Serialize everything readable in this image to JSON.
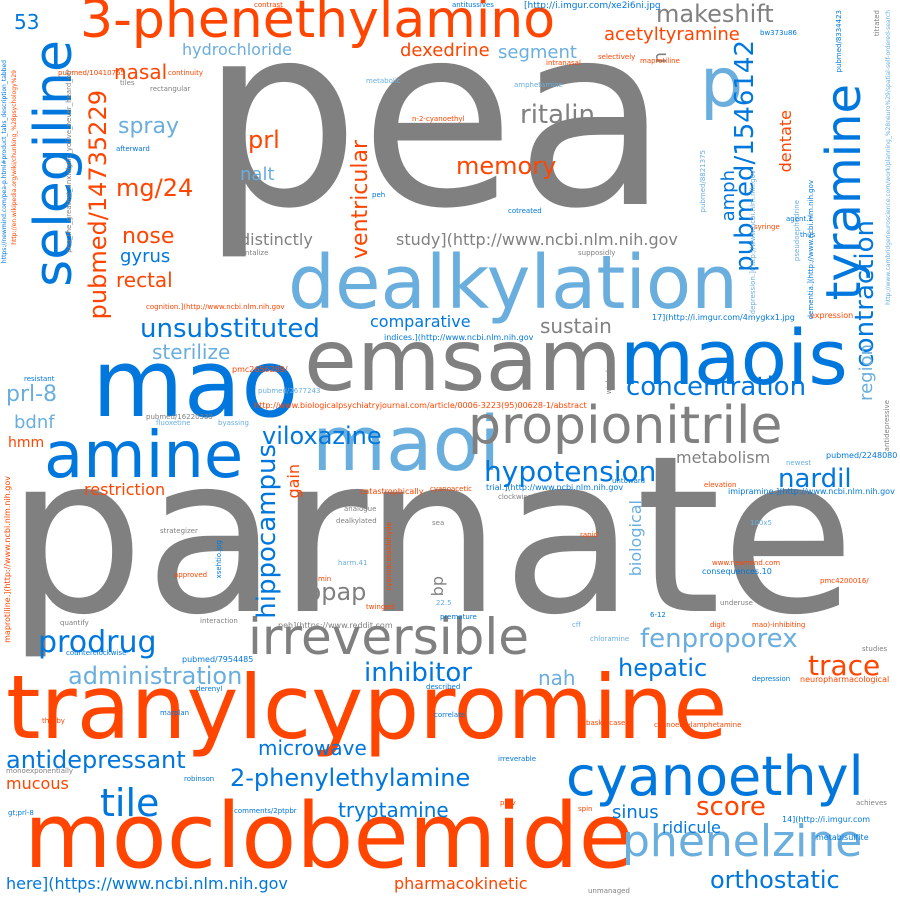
{
  "colors": {
    "gray": "#808080",
    "orange": "#ff4500",
    "blue": "#0077dd",
    "light_blue": "#6aaede"
  },
  "words": {
    "w01": "pea",
    "w02": "parnate",
    "w03": "tranylcypromine",
    "w04": "moclobemide",
    "w05": "emsam",
    "w06": "dealkylation",
    "w07": "maois",
    "w08": "mao",
    "w09": "maoi",
    "w10": "amine",
    "w11": "propionitrile",
    "w12": "irreversible",
    "w13": "cyanoethyl",
    "w14": "3-phenethylamino",
    "w15": "selegiline",
    "w16": "tyramine",
    "w17": "phenelzine",
    "w18": "p",
    "w19": "pubmed/14735229",
    "w20": "pubmed/1546142",
    "w21": "contraction",
    "w22": "unsubstituted",
    "w23": "concentration",
    "w24": "prodrug",
    "w25": "administration",
    "w26": "antidepressant",
    "w27": "inhibitor",
    "w28": "hypotension",
    "w29": "2-phenylethylamine",
    "w30": "viloxazine",
    "w31": "hippocampus",
    "w32": "fenproporex",
    "w33": "trace",
    "w34": "hepatic",
    "w35": "nardil",
    "w36": "orthostatic",
    "w37": "tile",
    "w38": "score",
    "w39": "microwave",
    "w40": "tryptamine",
    "w41": "ventricular",
    "w42": "memory",
    "w43": "ritalin",
    "w44": "makeshift",
    "w45": "acetyltyramine",
    "w46": "dexedrine",
    "w47": "hydrochloride",
    "w48": "segment",
    "w49": "nasal",
    "w50": "spray",
    "w51": "prl",
    "w52": "mg/24",
    "w53": "nalt",
    "w54": "nose",
    "w55": "gyrus",
    "w56": "rectal",
    "w57": "prl-8",
    "w58": "bdnf",
    "w59": "amph",
    "w60": "dentate",
    "w61": "region",
    "w62": "distinctly",
    "w63": "study](http://www.ncbi.nlm.nih.gov",
    "w64": "sustain",
    "w65": "comparative",
    "w66": "sterilize",
    "w67": "metabolism",
    "w68": "restriction",
    "w69": "gain",
    "w70": "bpap",
    "w71": "bp",
    "w72": "biological",
    "w73": "nah",
    "w74": "sinus",
    "w75": "ridicule",
    "w76": "mucous",
    "w77": "here](https://www.ncbi.nlm.nih.gov",
    "w78": "pharmacokinetic",
    "w79": "53",
    "w80": "hmm",
    "w81": "[http://i.imgur.com/xe2i6ni.jpg",
    "w82": "n",
    "w83": "maprotiline",
    "w84": "indices.](http://www.ncbi.nlm.nih.gov",
    "w85": "http://www.biologicalpsychiatryjournal.com/article/0006-3223(95)00628-1/abstract",
    "w86": "catastrophically",
    "w87": "imipramine.](http://www.ncbi.nlm.nih.gov",
    "w88": "cyanoacetaldehyde",
    "w89": "pubmed/2248080",
    "w90": "maprotiline.](http://www.ncbi.nlm.nih.gov",
    "w91": "www.newmind.com",
    "w92": "pmc4200016/",
    "w93": "consequences.10",
    "w94": "pubmed/7954485",
    "w95": "counterclockwise",
    "w96": "neuropharmacological",
    "w97": "cyanoethylamphetamine",
    "w98": "expression",
    "w99": "supposidly",
    "w100": "pubmed/16220339",
    "w101": "pubmed/10410765",
    "w102": "antitussives",
    "w103": "contrast",
    "w104": "fluoxetine",
    "w105": "byassing",
    "w106": "cognition.](http://www.ncbi.nlm.nih.gov",
    "w107": "17](http://i.imgur.com/4mygkx1.jpg",
    "w108": "pmc2656289/",
    "w109": "pubmed/2677243",
    "w110": "n-2-cyanoethyl",
    "w111": "pubmed/8821375",
    "w112": "depression.](http://www.ncbi.nlm.nih.gov",
    "w113": "dementia.](http://www.ncbi.nlm.nih.gov",
    "w114": "pseudoephedrine",
    "w115": "agent.1",
    "w116": "thus",
    "w117": "syringe",
    "w118": "antidepressive",
    "w119": "elevation",
    "w120": "untoward",
    "w121": "newest",
    "w122": "clockwise",
    "w123": "analogue",
    "w124": "dealkylated",
    "w125": "harm.41",
    "w126": "strategizer",
    "w127": "approved",
    "w128": "rapid",
    "w129": "100x5",
    "w130": "underuse",
    "w131": "digit",
    "w132": "mao)-inhibiting",
    "w133": "premature",
    "w134": "twinged",
    "w135": "22.5",
    "w136": "interaction",
    "w137": "quantify",
    "w138": "derenyl",
    "w139": "marplan",
    "w140": "robinson",
    "w141": "monoexponentially",
    "w142": "comments/2ptpbr",
    "w143": "gt;prl-8",
    "w144": "correlate",
    "w145": "irreverable",
    "w146": "described",
    "w147": "basketcase",
    "w148": "spin",
    "w149": "prev",
    "w150": "14](http://i.imgur.com",
    "w151": "metabisulfite",
    "w152": "achieves",
    "w153": "studies",
    "w154": "therby",
    "w155": "unmanaged",
    "w156": "chloramine",
    "w157": "cff",
    "w158": "6-12",
    "w159": "peh](https://www.reddit.com",
    "w160": "amphetamine",
    "w161": "intranasal",
    "w162": "selectively",
    "w163": "continuity",
    "w164": "tiles",
    "w165": "rectangular",
    "w166": "metabolic",
    "w167": "afterward",
    "w168": "cotreated",
    "w169": "peh",
    "w170": "tantalize",
    "w171": "resistant",
    "w172": "cyanoacetic",
    "w173": "trial.](http://www.ncbi.nlm.nih.gov",
    "w174": "bw373u86",
    "w175": "titrated",
    "w176": "https://newmind.com/pea-p.html#product_tabs_description_tabbed",
    "w177": "http://en.wikipedia.org/wiki/chunking_%28psychology%29",
    "w178": "pea_the_greatest_anxiolytic_youve_never_heard_of/",
    "w179": "depression",
    "w180": "min",
    "w181": "wicked",
    "w182": "sea",
    "w183": "xsehtio.jpg",
    "w184": "pubmed/8334423",
    "w185": "http://www.cambridgeneuroscience.com/work/planning_%28neuro%29/spatial-self-ordered-search"
  }
}
